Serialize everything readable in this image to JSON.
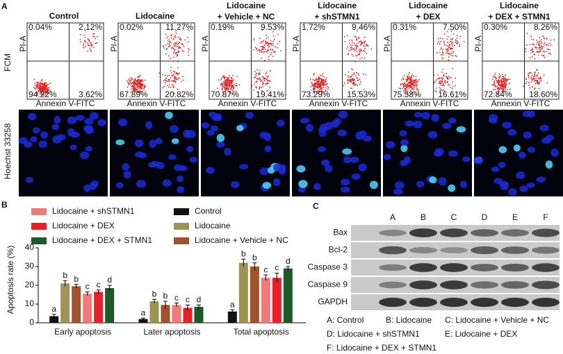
{
  "panel_labels": [
    "A",
    "B",
    "C"
  ],
  "panel_a": {
    "row_labels": [
      "FCM",
      "Hoechst 33258"
    ],
    "x_axis_label": "Annexin V-FITC",
    "y_axis_label": "PI-A",
    "columns": [
      {
        "header": [
          "Control"
        ],
        "quadrants": [
          "0.04%",
          "2.12%",
          "94.22%",
          "3.62%"
        ]
      },
      {
        "header": [
          "Lidocaine"
        ],
        "quadrants": [
          "0.02%",
          "11.27%",
          "67.89%",
          "20.82%"
        ]
      },
      {
        "header": [
          "Lidocaine",
          "+ Vehicle + NC"
        ],
        "quadrants": [
          "0.19%",
          "9.53%",
          "70.87%",
          "19.41%"
        ]
      },
      {
        "header": [
          "Lidocaine",
          "+ shSTMN1"
        ],
        "quadrants": [
          "1.72%",
          "9.46%",
          "73.29%",
          "15.53%"
        ]
      },
      {
        "header": [
          "Lidocaine",
          "+ DEX"
        ],
        "quadrants": [
          "0.31%",
          "7.50%",
          "75.58%",
          "16.61%"
        ]
      },
      {
        "header": [
          "Lidocaine",
          "+ DEX + STMN1"
        ],
        "quadrants": [
          "0.30%",
          "8.26%",
          "72.84%",
          "18.60%"
        ]
      }
    ]
  },
  "chart_data": {
    "type": "bar",
    "y_label": "Apoptosis rate (%)",
    "categories": [
      "Early apoptosis",
      "Later apoptosis",
      "Total apoptosis"
    ],
    "series": [
      {
        "name": "Control",
        "color": "#111111",
        "values": [
          3.5,
          2,
          6
        ],
        "errors": [
          1,
          0.5,
          1
        ],
        "letters": [
          "a",
          "a",
          "a"
        ]
      },
      {
        "name": "Lidocaine",
        "color": "#9c9452",
        "values": [
          21,
          11.5,
          32
        ],
        "errors": [
          1.5,
          1,
          2
        ],
        "letters": [
          "b",
          "b",
          "b"
        ]
      },
      {
        "name": "Lidocaine + Vehicle + NC",
        "color": "#a0522d",
        "values": [
          19.5,
          9.5,
          30
        ],
        "errors": [
          1,
          2,
          2
        ],
        "letters": [
          "b",
          "b",
          "b"
        ]
      },
      {
        "name": "Lidocaine + shSTMN1",
        "color": "#f07a7a",
        "values": [
          15.5,
          9.5,
          24
        ],
        "errors": [
          1,
          1,
          1.5
        ],
        "letters": [
          "c",
          "c",
          "c"
        ]
      },
      {
        "name": "Lidocaine + DEX",
        "color": "#e8202a",
        "values": [
          16.5,
          8,
          24
        ],
        "errors": [
          1,
          1.5,
          2.5
        ],
        "letters": [
          "c",
          "c",
          "c"
        ]
      },
      {
        "name": "Lidocaine + DEX + STMN1",
        "color": "#1e5a28",
        "values": [
          18.5,
          8.5,
          29
        ],
        "errors": [
          1.5,
          1,
          1
        ],
        "letters": [
          "d",
          "d",
          "d"
        ]
      }
    ],
    "ylim": [
      0,
      40
    ],
    "yticks": [
      0,
      10,
      20,
      30,
      40
    ]
  },
  "panel_c": {
    "lanes": [
      "A",
      "B",
      "C",
      "D",
      "E",
      "F"
    ],
    "proteins": [
      "Bax",
      "Bcl-2",
      "Caspase 3",
      "Caspase 9",
      "GAPDH"
    ],
    "legend": [
      "A: Control",
      "B: Lidocaine",
      "C: Lidocaine + Vehicle + NC",
      "D: Lidocaine + shSTMN1",
      "E: Lidocaine + DEX",
      "F: Lidocaine +  DEX + STMN1"
    ]
  }
}
